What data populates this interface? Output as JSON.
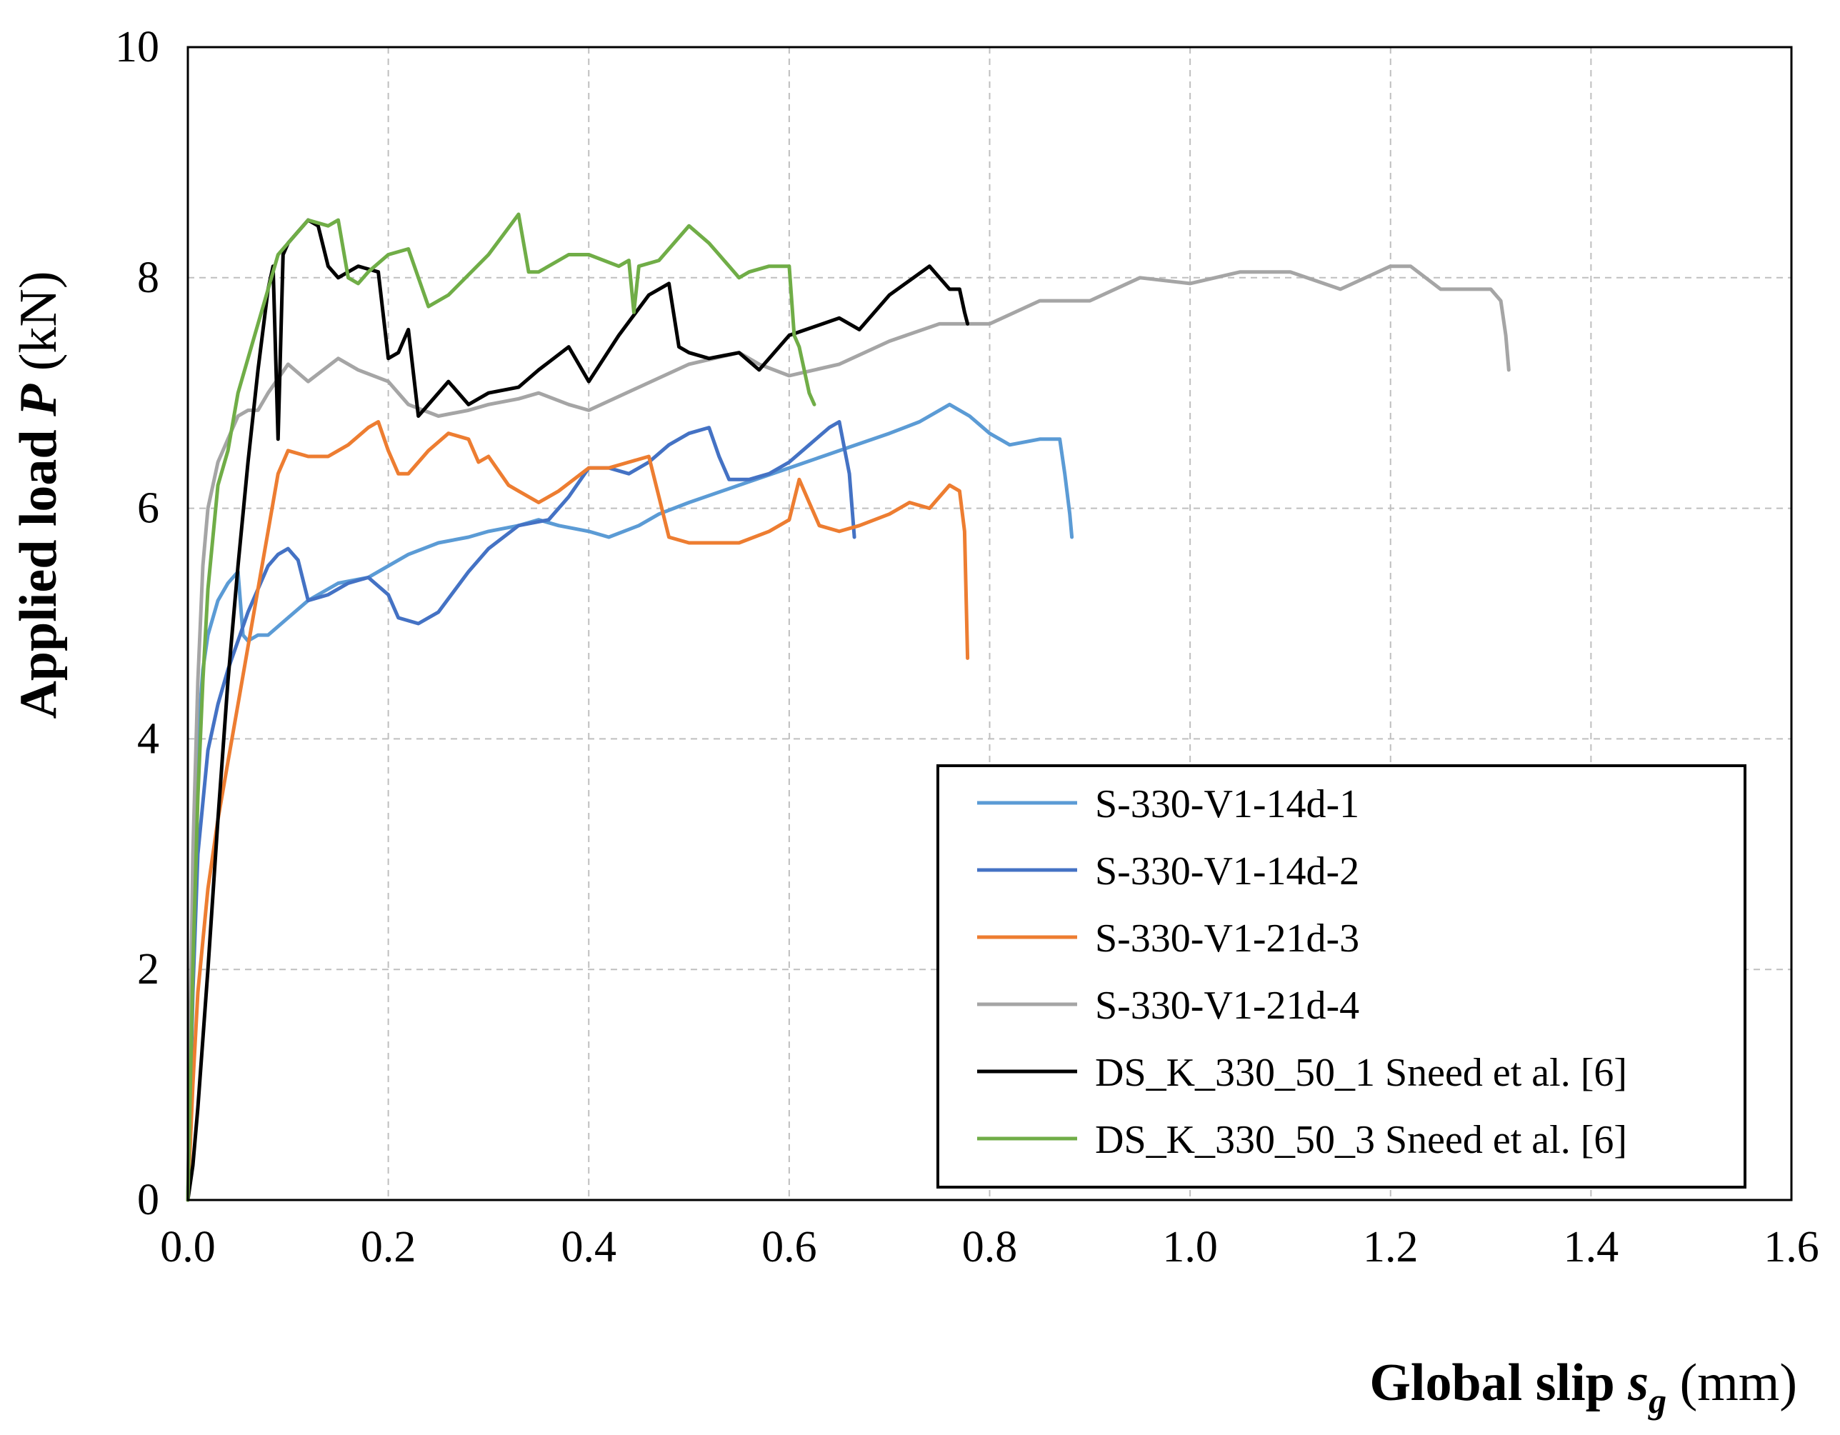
{
  "chart_data": {
    "type": "line",
    "xlabel": "Global slip sg (mm)",
    "xlabel_parts": {
      "pre": "Global slip ",
      "sym": "s",
      "sub": "g",
      "post": " (mm)"
    },
    "ylabel": "Applied load P (kN)",
    "ylabel_parts": {
      "pre": "Applied  load ",
      "sym": "P",
      "post": " (kN)"
    },
    "xlim": [
      0,
      1.6
    ],
    "ylim": [
      0,
      10
    ],
    "x_ticks": [
      "0.0",
      "0.2",
      "0.4",
      "0.6",
      "0.8",
      "1.0",
      "1.2",
      "1.4",
      "1.6"
    ],
    "y_ticks": [
      "0",
      "2",
      "4",
      "6",
      "8",
      "10"
    ],
    "grid": true,
    "legend_position": "bottom-right",
    "series": [
      {
        "name": "S-330-V1-14d-1",
        "color": "#5B9BD5",
        "x": [
          0,
          0.005,
          0.01,
          0.015,
          0.02,
          0.03,
          0.04,
          0.05,
          0.055,
          0.06,
          0.07,
          0.08,
          0.1,
          0.12,
          0.15,
          0.18,
          0.2,
          0.22,
          0.25,
          0.28,
          0.3,
          0.33,
          0.35,
          0.37,
          0.4,
          0.42,
          0.45,
          0.47,
          0.5,
          0.55,
          0.6,
          0.65,
          0.7,
          0.73,
          0.76,
          0.78,
          0.8,
          0.82,
          0.85,
          0.87,
          0.875,
          0.88,
          0.882
        ],
        "y": [
          0,
          2.5,
          4.0,
          4.6,
          4.9,
          5.2,
          5.35,
          5.45,
          4.9,
          4.85,
          4.9,
          4.9,
          5.05,
          5.2,
          5.35,
          5.4,
          5.5,
          5.6,
          5.7,
          5.75,
          5.8,
          5.85,
          5.9,
          5.85,
          5.8,
          5.75,
          5.85,
          5.95,
          6.05,
          6.2,
          6.35,
          6.5,
          6.65,
          6.75,
          6.9,
          6.8,
          6.65,
          6.55,
          6.6,
          6.6,
          6.3,
          5.95,
          5.75
        ]
      },
      {
        "name": "S-330-V1-14d-2",
        "color": "#4472C4",
        "x": [
          0,
          0.005,
          0.01,
          0.02,
          0.03,
          0.04,
          0.05,
          0.06,
          0.07,
          0.08,
          0.09,
          0.1,
          0.11,
          0.12,
          0.14,
          0.16,
          0.18,
          0.2,
          0.21,
          0.23,
          0.25,
          0.28,
          0.3,
          0.33,
          0.36,
          0.38,
          0.4,
          0.42,
          0.44,
          0.46,
          0.48,
          0.5,
          0.52,
          0.53,
          0.54,
          0.56,
          0.58,
          0.6,
          0.62,
          0.64,
          0.65,
          0.66,
          0.665
        ],
        "y": [
          0,
          1.8,
          3.0,
          3.9,
          4.3,
          4.6,
          4.85,
          5.1,
          5.3,
          5.5,
          5.6,
          5.65,
          5.55,
          5.2,
          5.25,
          5.35,
          5.4,
          5.25,
          5.05,
          5.0,
          5.1,
          5.45,
          5.65,
          5.85,
          5.9,
          6.1,
          6.35,
          6.35,
          6.3,
          6.4,
          6.55,
          6.65,
          6.7,
          6.45,
          6.25,
          6.25,
          6.3,
          6.4,
          6.55,
          6.7,
          6.75,
          6.3,
          5.75
        ]
      },
      {
        "name": "S-330-V1-21d-3",
        "color": "#ED7D31",
        "x": [
          0,
          0.005,
          0.01,
          0.02,
          0.03,
          0.04,
          0.05,
          0.06,
          0.07,
          0.08,
          0.09,
          0.1,
          0.12,
          0.14,
          0.16,
          0.18,
          0.19,
          0.2,
          0.21,
          0.22,
          0.24,
          0.26,
          0.28,
          0.29,
          0.3,
          0.32,
          0.33,
          0.35,
          0.37,
          0.4,
          0.42,
          0.44,
          0.46,
          0.47,
          0.48,
          0.5,
          0.55,
          0.58,
          0.6,
          0.61,
          0.62,
          0.63,
          0.65,
          0.67,
          0.7,
          0.72,
          0.74,
          0.76,
          0.77,
          0.775,
          0.778
        ],
        "y": [
          0,
          1.0,
          1.8,
          2.7,
          3.3,
          3.8,
          4.3,
          4.8,
          5.3,
          5.8,
          6.3,
          6.5,
          6.45,
          6.45,
          6.55,
          6.7,
          6.75,
          6.5,
          6.3,
          6.3,
          6.5,
          6.65,
          6.6,
          6.4,
          6.45,
          6.2,
          6.15,
          6.05,
          6.15,
          6.35,
          6.35,
          6.4,
          6.45,
          6.1,
          5.75,
          5.7,
          5.7,
          5.8,
          5.9,
          6.25,
          6.05,
          5.85,
          5.8,
          5.85,
          5.95,
          6.05,
          6.0,
          6.2,
          6.15,
          5.8,
          4.7
        ]
      },
      {
        "name": "S-330-V1-21d-4",
        "color": "#A5A5A5",
        "x": [
          0,
          0.005,
          0.01,
          0.015,
          0.02,
          0.03,
          0.04,
          0.05,
          0.06,
          0.07,
          0.08,
          0.1,
          0.12,
          0.15,
          0.17,
          0.2,
          0.22,
          0.25,
          0.28,
          0.3,
          0.33,
          0.35,
          0.38,
          0.4,
          0.45,
          0.5,
          0.55,
          0.57,
          0.6,
          0.65,
          0.7,
          0.75,
          0.8,
          0.85,
          0.9,
          0.95,
          1.0,
          1.05,
          1.1,
          1.15,
          1.2,
          1.22,
          1.25,
          1.3,
          1.31,
          1.315,
          1.318
        ],
        "y": [
          0,
          3.0,
          4.5,
          5.5,
          6.0,
          6.4,
          6.6,
          6.8,
          6.85,
          6.85,
          7.0,
          7.25,
          7.1,
          7.3,
          7.2,
          7.1,
          6.9,
          6.8,
          6.85,
          6.9,
          6.95,
          7.0,
          6.9,
          6.85,
          7.05,
          7.25,
          7.35,
          7.25,
          7.15,
          7.25,
          7.45,
          7.6,
          7.6,
          7.8,
          7.8,
          8.0,
          7.95,
          8.05,
          8.05,
          7.9,
          8.1,
          8.1,
          7.9,
          7.9,
          7.8,
          7.5,
          7.2
        ]
      },
      {
        "name": "DS_K_330_50_1 Sneed et al. [6]",
        "color": "#000000",
        "x": [
          0,
          0.005,
          0.01,
          0.02,
          0.03,
          0.04,
          0.05,
          0.06,
          0.07,
          0.08,
          0.085,
          0.09,
          0.095,
          0.1,
          0.11,
          0.12,
          0.13,
          0.14,
          0.15,
          0.16,
          0.17,
          0.19,
          0.2,
          0.21,
          0.22,
          0.23,
          0.24,
          0.26,
          0.28,
          0.3,
          0.33,
          0.35,
          0.38,
          0.4,
          0.43,
          0.46,
          0.48,
          0.49,
          0.5,
          0.52,
          0.55,
          0.57,
          0.6,
          0.65,
          0.67,
          0.7,
          0.74,
          0.76,
          0.77,
          0.775,
          0.778
        ],
        "y": [
          0,
          0.3,
          0.8,
          2.0,
          3.3,
          4.5,
          5.5,
          6.4,
          7.2,
          7.9,
          8.1,
          6.6,
          8.2,
          8.3,
          8.4,
          8.5,
          8.45,
          8.1,
          8.0,
          8.05,
          8.1,
          8.05,
          7.3,
          7.35,
          7.55,
          6.8,
          6.9,
          7.1,
          6.9,
          7.0,
          7.05,
          7.2,
          7.4,
          7.1,
          7.5,
          7.85,
          7.95,
          7.4,
          7.35,
          7.3,
          7.35,
          7.2,
          7.5,
          7.65,
          7.55,
          7.85,
          8.1,
          7.9,
          7.9,
          7.7,
          7.6
        ]
      },
      {
        "name": "DS_K_330_50_3 Sneed et al. [6]",
        "color": "#70AD47",
        "x": [
          0,
          0.005,
          0.01,
          0.015,
          0.02,
          0.03,
          0.04,
          0.05,
          0.06,
          0.07,
          0.08,
          0.09,
          0.1,
          0.12,
          0.14,
          0.15,
          0.16,
          0.17,
          0.18,
          0.2,
          0.22,
          0.24,
          0.26,
          0.3,
          0.33,
          0.34,
          0.35,
          0.38,
          0.4,
          0.43,
          0.44,
          0.445,
          0.45,
          0.47,
          0.5,
          0.52,
          0.53,
          0.55,
          0.56,
          0.58,
          0.6,
          0.605,
          0.61,
          0.62,
          0.625
        ],
        "y": [
          0,
          2.0,
          3.5,
          4.5,
          5.3,
          6.2,
          6.5,
          7.0,
          7.3,
          7.6,
          7.9,
          8.2,
          8.3,
          8.5,
          8.45,
          8.5,
          8.0,
          7.95,
          8.05,
          8.2,
          8.25,
          7.75,
          7.85,
          8.2,
          8.55,
          8.05,
          8.05,
          8.2,
          8.2,
          8.1,
          8.15,
          7.7,
          8.1,
          8.15,
          8.45,
          8.3,
          8.2,
          8.0,
          8.05,
          8.1,
          8.1,
          7.5,
          7.4,
          7.0,
          6.9
        ]
      }
    ]
  }
}
